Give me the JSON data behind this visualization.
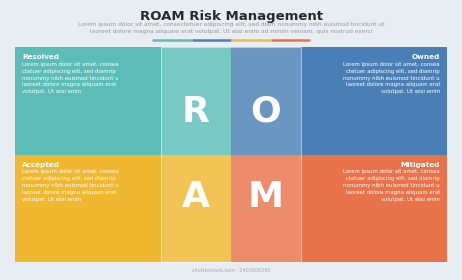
{
  "title": "ROAM Risk Management",
  "subtitle_line1": "Lorem ipsum dolor sit amet, consectetuer adipiscing elit, sed diam nonummy nibh euismod tincidunt ut",
  "subtitle_line2": "laoreet dolore magna aliquam erat volutpat. Ut wisi enim ad minim veniam, quis nostrud exerci",
  "bg_color": "#e8edf2",
  "separator_colors": [
    "#5bbcb8",
    "#4a7fb5",
    "#f0c040",
    "#e8734a"
  ],
  "quadrant_colors": [
    "#5bbcb8",
    "#4a7fb5",
    "#f0b830",
    "#e8734a"
  ],
  "letters": [
    "R",
    "O",
    "A",
    "M"
  ],
  "letter_color": "#ffffff",
  "labels": [
    "Resolved",
    "Owned",
    "Accepted",
    "Mitigated"
  ],
  "body_text": "Lorem ipsum dolor sit amet, consea\nctetuer adipiscing elit, sed diamrip\nnonummy nibh euismod tincidunt u\nlaoreet dolore magna aliquam erat\nvolutpat. Ut wisi enim",
  "title_fontsize": 9.5,
  "subtitle_fontsize": 4.2,
  "label_fontsize": 5.2,
  "body_fontsize": 3.9,
  "letter_fontsize": 26,
  "watermark": "shutterstock.com · 2403606295"
}
